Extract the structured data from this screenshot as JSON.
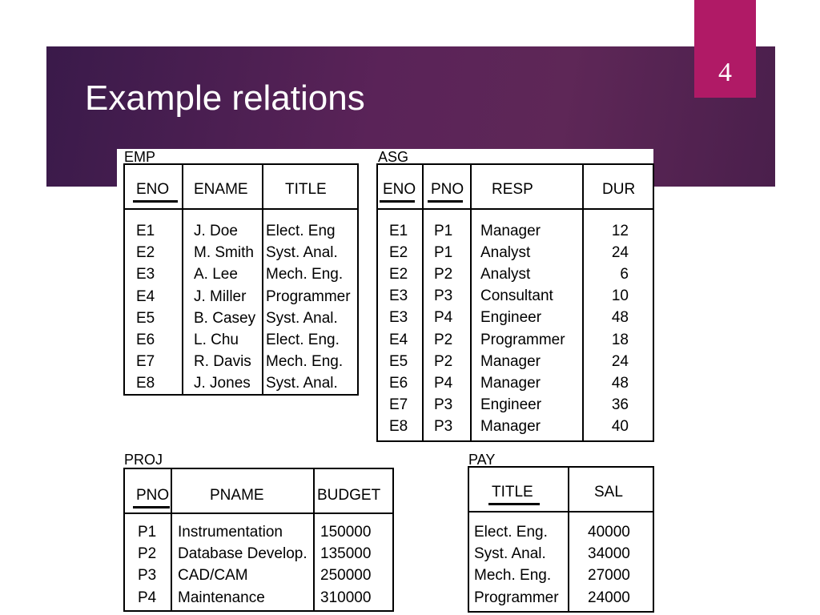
{
  "slide": {
    "title": "Example relations",
    "page_number": "4"
  },
  "emp": {
    "name": "EMP",
    "headers": [
      "ENO",
      "ENAME",
      "TITLE"
    ],
    "rows": [
      [
        "E1",
        "J. Doe",
        "Elect. Eng"
      ],
      [
        "E2",
        "M. Smith",
        "Syst. Anal."
      ],
      [
        "E3",
        "A. Lee",
        "Mech. Eng."
      ],
      [
        "E4",
        "J. Miller",
        "Programmer"
      ],
      [
        "E5",
        "B. Casey",
        "Syst. Anal."
      ],
      [
        "E6",
        "L. Chu",
        "Elect. Eng."
      ],
      [
        "E7",
        "R. Davis",
        "Mech. Eng."
      ],
      [
        "E8",
        "J. Jones",
        "Syst. Anal."
      ]
    ]
  },
  "asg": {
    "name": "ASG",
    "headers": [
      "ENO",
      "PNO",
      "RESP",
      "DUR"
    ],
    "rows": [
      [
        "E1",
        "P1",
        "Manager",
        "12"
      ],
      [
        "E2",
        "P1",
        "Analyst",
        "24"
      ],
      [
        "E2",
        "P2",
        "Analyst",
        "6"
      ],
      [
        "E3",
        "P3",
        "Consultant",
        "10"
      ],
      [
        "E3",
        "P4",
        "Engineer",
        "48"
      ],
      [
        "E4",
        "P2",
        "Programmer",
        "18"
      ],
      [
        "E5",
        "P2",
        "Manager",
        "24"
      ],
      [
        "E6",
        "P4",
        "Manager",
        "48"
      ],
      [
        "E7",
        "P3",
        "Engineer",
        "36"
      ],
      [
        "E8",
        "P3",
        "Manager",
        "40"
      ]
    ]
  },
  "proj": {
    "name": "PROJ",
    "headers": [
      "PNO",
      "PNAME",
      "BUDGET"
    ],
    "rows": [
      [
        "P1",
        "Instrumentation",
        "150000"
      ],
      [
        "P2",
        "Database Develop.",
        "135000"
      ],
      [
        "P3",
        "CAD/CAM",
        "250000"
      ],
      [
        "P4",
        "Maintenance",
        "310000"
      ]
    ]
  },
  "pay": {
    "name": "PAY",
    "headers": [
      "TITLE",
      "SAL"
    ],
    "rows": [
      [
        "Elect. Eng.",
        "40000"
      ],
      [
        "Syst. Anal.",
        "34000"
      ],
      [
        "Mech. Eng.",
        "27000"
      ],
      [
        "Programmer",
        "24000"
      ]
    ]
  }
}
